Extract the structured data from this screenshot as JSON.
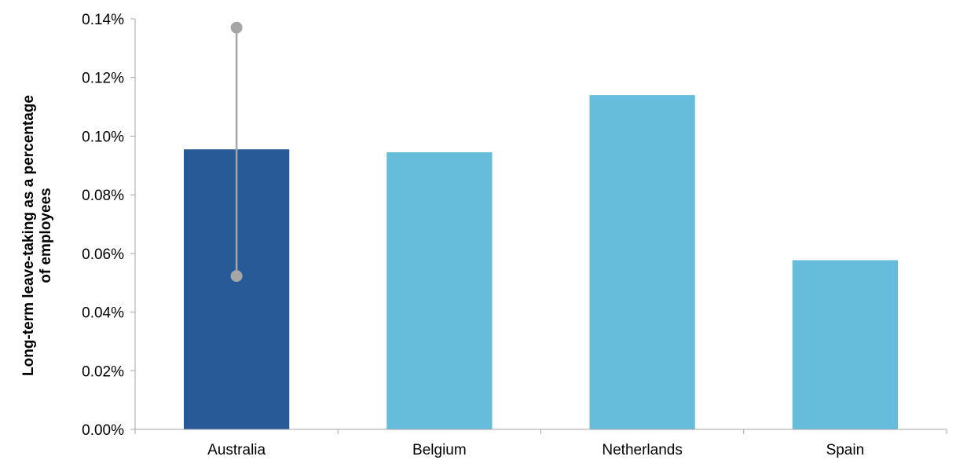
{
  "chart_data": {
    "type": "bar",
    "title": "",
    "xlabel": "",
    "ylabel_lines": [
      "Long-term leave-taking as a percentage",
      "of employees"
    ],
    "categories": [
      "Australia",
      "Belgium",
      "Netherlands",
      "Spain"
    ],
    "values": [
      0.0955,
      0.0945,
      0.114,
      0.0577
    ],
    "error_bar": {
      "category": "Australia",
      "low": 0.0523,
      "high": 0.137
    },
    "ylim": [
      0,
      0.14
    ],
    "yticks": [
      0,
      0.02,
      0.04,
      0.06,
      0.08,
      0.1,
      0.12,
      0.14
    ],
    "ytick_labels": [
      "0.00%",
      "0.02%",
      "0.04%",
      "0.06%",
      "0.08%",
      "0.10%",
      "0.12%",
      "0.14%"
    ],
    "grid": false,
    "legend": "none",
    "colors": {
      "highlight_bar": "#285a98",
      "bar": "#66bcdb",
      "error_bar": "#a6a6a6",
      "axis": "#a6a6a6"
    }
  }
}
